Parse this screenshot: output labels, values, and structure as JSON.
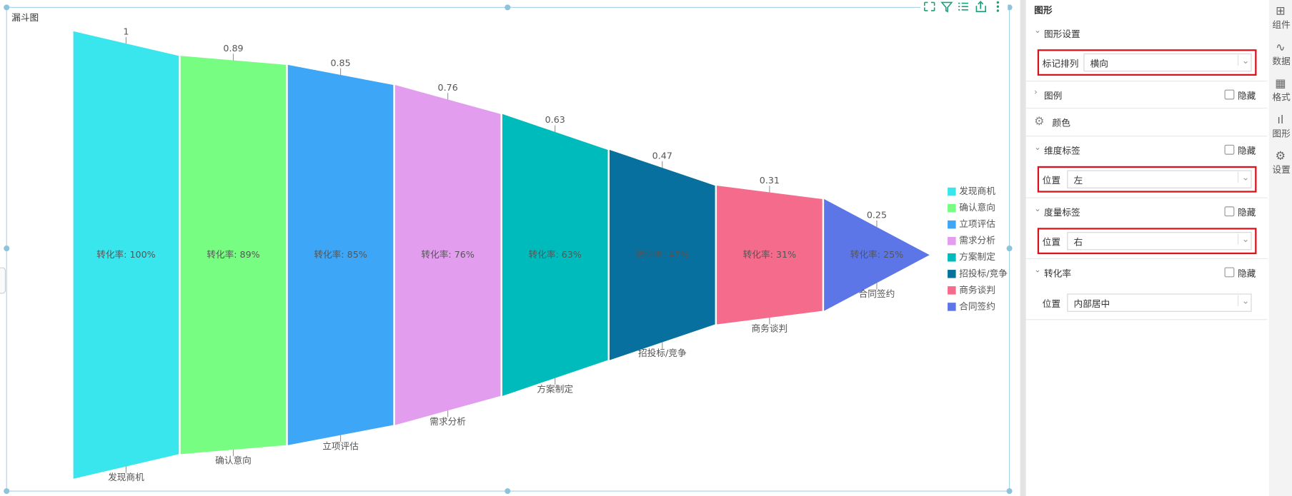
{
  "chart_data": {
    "type": "funnel",
    "title": "漏斗图",
    "categories": [
      "发现商机",
      "确认意向",
      "立项评估",
      "需求分析",
      "方案制定",
      "招投标/竞争",
      "商务谈判",
      "合同签约"
    ],
    "values": [
      1,
      0.89,
      0.85,
      0.76,
      0.63,
      0.47,
      0.31,
      0.25
    ],
    "value_labels": [
      "转化率: 100%",
      "转化率: 89%",
      "转化率: 85%",
      "转化率: 76%",
      "转化率: 63%",
      "转化率: 47%",
      "转化率: 31%",
      "转化率: 25%"
    ],
    "colors": [
      "#3ae6ee",
      "#78fd83",
      "#3ea6f6",
      "#e39def",
      "#00bbbc",
      "#08709e",
      "#f46b8b",
      "#5c76e8"
    ],
    "legend": "right"
  },
  "panel": {
    "title": "图形",
    "sections": [
      {
        "title": "图形设置",
        "fields": [
          {
            "label": "标记排列",
            "value": "横向"
          }
        ]
      },
      {
        "title": "图例",
        "hide": "隐藏"
      },
      {
        "title": "颜色"
      },
      {
        "title": "维度标签",
        "hide": "隐藏",
        "fields": [
          {
            "label": "位置",
            "value": "左"
          }
        ]
      },
      {
        "title": "度量标签",
        "hide": "隐藏",
        "fields": [
          {
            "label": "位置",
            "value": "右"
          }
        ]
      },
      {
        "title": "转化率",
        "hide": "隐藏",
        "fields": [
          {
            "label": "位置",
            "value": "内部居中"
          }
        ]
      }
    ]
  },
  "sidebar": [
    "组件",
    "数据",
    "格式",
    "图形",
    "设置"
  ]
}
